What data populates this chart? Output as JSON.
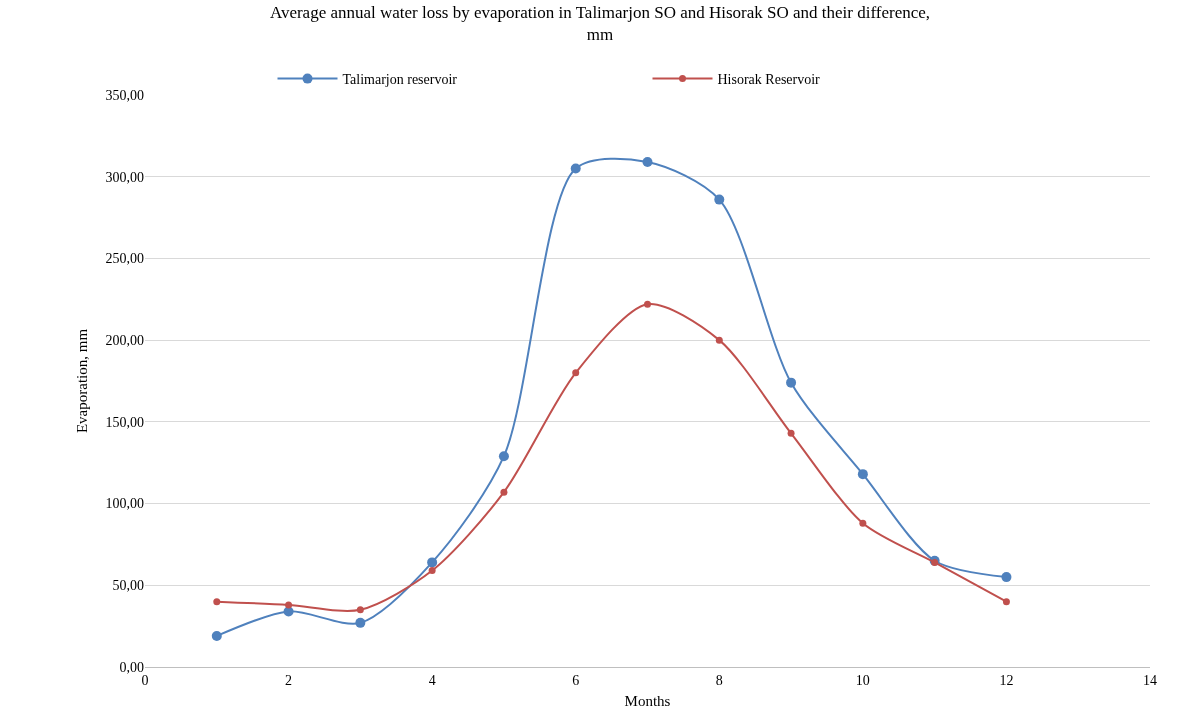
{
  "chart_data": {
    "type": "line",
    "title": "Average annual water loss by evaporation in Talimarjon SO and Hisorak SO and their difference, mm",
    "xlabel": "Months",
    "ylabel": "Evaporation, mm",
    "x": [
      1,
      2,
      3,
      4,
      5,
      6,
      7,
      8,
      9,
      10,
      11,
      12
    ],
    "series": [
      {
        "name": "Talimarjon reservoir",
        "color": "#4f81bd",
        "values": [
          19,
          34,
          27,
          64,
          129,
          305,
          309,
          286,
          174,
          118,
          65,
          55
        ]
      },
      {
        "name": "Hisorak Reservoir",
        "color": "#c0504d",
        "values": [
          40,
          38,
          35,
          59,
          107,
          180,
          222,
          200,
          143,
          88,
          64,
          40
        ]
      }
    ],
    "xlim": [
      0,
      14
    ],
    "xticks": [
      0,
      2,
      4,
      6,
      8,
      10,
      12,
      14
    ],
    "ylim": [
      0,
      350
    ],
    "yticks": [
      {
        "value": 0,
        "label": "0,00"
      },
      {
        "value": 50,
        "label": "50,00"
      },
      {
        "value": 100,
        "label": "100,00"
      },
      {
        "value": 150,
        "label": "150,00"
      },
      {
        "value": 200,
        "label": "200,00"
      },
      {
        "value": 250,
        "label": "250,00"
      },
      {
        "value": 300,
        "label": "300,00"
      },
      {
        "value": 350,
        "label": "350,00"
      }
    ],
    "grid": "y",
    "legend": "top",
    "marker": "circle",
    "line_style": "solid"
  }
}
